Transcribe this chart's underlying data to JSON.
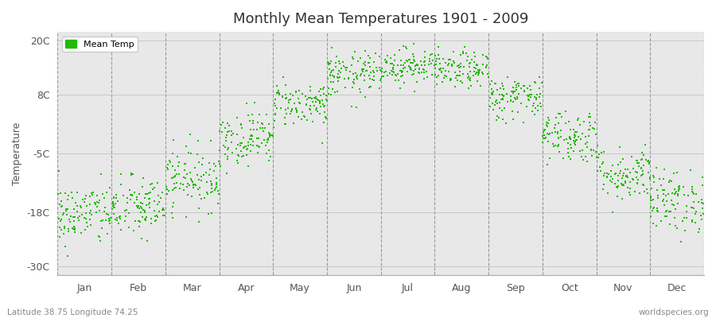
{
  "title": "Monthly Mean Temperatures 1901 - 2009",
  "ylabel": "Temperature",
  "subtitle_left": "Latitude 38.75 Longitude 74.25",
  "subtitle_right": "worldspecies.org",
  "yticks": [
    20,
    8,
    -5,
    -18,
    -30
  ],
  "yticklabels": [
    "20C",
    "8C",
    "-5C",
    "-18C",
    "-30C"
  ],
  "ylim": [
    -32,
    22
  ],
  "months": [
    "Jan",
    "Feb",
    "Mar",
    "Apr",
    "May",
    "Jun",
    "Jul",
    "Aug",
    "Sep",
    "Oct",
    "Nov",
    "Dec"
  ],
  "dot_color": "#22bb00",
  "dot_size": 3,
  "background_color": "#e8e8e8",
  "grid_color": "#999999",
  "monthly_mean_temps": [
    -18.5,
    -17.0,
    -10.5,
    -1.5,
    6.0,
    12.5,
    14.5,
    13.5,
    7.5,
    -1.0,
    -9.5,
    -15.5
  ],
  "monthly_std_temps": [
    3.5,
    3.5,
    3.5,
    3.0,
    2.5,
    2.5,
    2.0,
    2.0,
    2.5,
    3.0,
    3.0,
    3.5
  ],
  "n_years": 109
}
